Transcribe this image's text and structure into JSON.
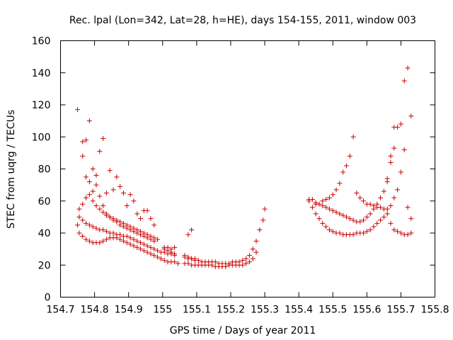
{
  "chart_data": {
    "type": "scatter",
    "title": "Rec. lpal (Lon=342, Lat=28, h=HE), days 154-155, 2011, window 003",
    "xlabel": "GPS time / Days of year 2011",
    "ylabel": "STEC from uqrg / TECUs",
    "xlim": [
      154.7,
      155.8
    ],
    "ylim": [
      0,
      160
    ],
    "x_ticks": [
      "154.7",
      "154.8",
      "154.9",
      "155",
      "155.1",
      "155.2",
      "155.3",
      "155.4",
      "155.5",
      "155.6",
      "155.7",
      "155.8"
    ],
    "y_ticks": [
      "0",
      "20",
      "40",
      "60",
      "80",
      "100",
      "120",
      "140",
      "160"
    ],
    "grid": false,
    "legend": "none",
    "marker": "+",
    "color": "#cc0000",
    "series": [
      {
        "x": [
          154.75,
          154.755,
          154.765,
          154.775,
          154.785,
          154.795,
          154.805,
          154.815,
          154.825,
          154.835,
          154.845,
          154.855,
          154.865,
          154.875,
          154.885,
          154.895,
          154.905,
          154.915,
          154.925,
          154.935,
          154.945,
          154.955,
          154.965,
          154.975,
          154.985,
          154.995,
          155.005,
          155.015,
          155.025,
          155.035,
          155.045,
          155.065,
          155.075,
          155.085,
          155.095,
          155.105,
          155.115,
          155.125,
          155.135,
          155.145,
          155.155,
          155.165,
          155.175,
          155.185,
          155.195,
          155.205,
          155.215,
          155.225,
          155.235,
          155.245,
          155.255,
          155.265,
          155.275
        ],
        "y": [
          45,
          40,
          38,
          36,
          35,
          34,
          34,
          34,
          35,
          36,
          37,
          37,
          37,
          36,
          35,
          34,
          33,
          32,
          31,
          30,
          29,
          28,
          27,
          26,
          25,
          24,
          23,
          22,
          22,
          22,
          21,
          21,
          21,
          20,
          20,
          20,
          20,
          20,
          20,
          20,
          19,
          19,
          19,
          19,
          20,
          20,
          20,
          20,
          20,
          21,
          22,
          24,
          28
        ]
      },
      {
        "x": [
          154.755,
          154.765,
          154.775,
          154.785,
          154.795,
          154.805,
          154.815,
          154.825,
          154.835,
          154.845,
          154.855,
          154.865,
          154.875,
          154.885,
          154.895,
          154.905,
          154.915,
          154.925,
          154.935,
          154.945,
          154.955,
          154.965,
          154.975,
          154.985,
          154.995,
          155.005,
          155.015,
          155.025,
          155.035,
          155.065,
          155.075,
          155.085,
          155.095,
          155.105,
          155.115,
          155.125,
          155.135,
          155.145,
          155.155,
          155.165,
          155.175,
          155.185,
          155.195,
          155.205,
          155.215,
          155.225,
          155.235,
          155.245,
          155.255,
          155.265,
          155.275,
          155.285,
          155.295,
          155.3
        ],
        "y": [
          50,
          48,
          46,
          45,
          44,
          43,
          42,
          42,
          41,
          40,
          40,
          39,
          39,
          38,
          38,
          37,
          36,
          35,
          34,
          33,
          32,
          31,
          30,
          29,
          28,
          28,
          27,
          27,
          26,
          25,
          24,
          24,
          23,
          23,
          22,
          22,
          22,
          22,
          22,
          21,
          21,
          21,
          21,
          22,
          22,
          22,
          23,
          24,
          26,
          30,
          35,
          42,
          48,
          55
        ]
      },
      {
        "x": [
          154.755,
          154.765,
          154.775,
          154.785,
          154.795,
          154.805,
          154.815,
          154.825,
          154.835,
          154.845,
          154.855,
          154.865,
          154.875,
          154.885,
          154.895,
          154.905,
          154.915,
          154.925,
          154.935,
          154.945,
          154.955,
          154.965,
          154.975,
          154.985,
          155.005,
          155.015,
          155.025,
          155.035,
          155.065,
          155.075,
          155.085,
          155.095
        ],
        "y": [
          55,
          58,
          62,
          64,
          60,
          57,
          55,
          53,
          51,
          50,
          49,
          48,
          47,
          46,
          45,
          44,
          43,
          42,
          41,
          40,
          39,
          38,
          37,
          36,
          30,
          29,
          28,
          27,
          26,
          25,
          24,
          24
        ]
      },
      {
        "x": [
          154.75,
          154.765,
          154.775,
          154.785,
          154.795,
          154.805,
          154.815,
          154.825,
          154.835,
          154.845,
          154.855,
          154.865,
          154.875,
          154.885,
          154.895,
          154.905,
          154.915,
          154.925,
          154.935,
          154.945,
          154.955,
          154.965,
          154.975,
          155.005,
          155.015,
          155.025,
          155.035,
          155.075,
          155.085
        ],
        "y": [
          117,
          97,
          98,
          110,
          80,
          76,
          91,
          99,
          65,
          79,
          67,
          75,
          69,
          65,
          57,
          64,
          60,
          52,
          49,
          54,
          54,
          49,
          45,
          31,
          31,
          30,
          31,
          39,
          42
        ]
      },
      {
        "x": [
          154.765,
          154.775,
          154.785,
          154.795,
          154.805,
          154.815,
          154.825,
          154.835,
          154.845,
          154.855,
          154.865,
          154.875,
          154.885,
          154.895,
          154.905,
          154.915,
          154.925,
          154.935,
          154.945,
          154.955,
          154.965,
          154.975
        ],
        "y": [
          88,
          75,
          72,
          66,
          70,
          63,
          57,
          52,
          50,
          48,
          47,
          45,
          44,
          43,
          42,
          41,
          40,
          39,
          38,
          37,
          36,
          35
        ]
      },
      {
        "x": [
          155.43,
          155.44,
          155.45,
          155.46,
          155.47,
          155.48,
          155.49,
          155.5,
          155.51,
          155.52,
          155.53,
          155.54,
          155.55,
          155.56,
          155.57,
          155.58,
          155.59,
          155.6,
          155.61,
          155.62,
          155.63,
          155.64,
          155.65,
          155.66,
          155.67,
          155.68,
          155.69,
          155.7,
          155.71,
          155.72,
          155.73
        ],
        "y": [
          60,
          56,
          52,
          49,
          46,
          44,
          42,
          41,
          40,
          40,
          39,
          39,
          39,
          39,
          40,
          40,
          40,
          41,
          42,
          44,
          46,
          48,
          50,
          52,
          46,
          42,
          41,
          40,
          39,
          39,
          40
        ]
      },
      {
        "x": [
          155.43,
          155.44,
          155.45,
          155.46,
          155.47,
          155.48,
          155.49,
          155.5,
          155.51,
          155.52,
          155.53,
          155.54,
          155.55,
          155.56,
          155.57,
          155.58,
          155.59,
          155.6,
          155.61,
          155.62,
          155.63,
          155.64,
          155.65,
          155.66,
          155.67,
          155.68
        ],
        "y": [
          61,
          61,
          59,
          58,
          57,
          56,
          55,
          54,
          53,
          52,
          51,
          50,
          49,
          48,
          47,
          47,
          48,
          50,
          52,
          55,
          58,
          62,
          66,
          74,
          88,
          106
        ]
      },
      {
        "x": [
          155.45,
          155.46,
          155.47,
          155.48,
          155.49,
          155.5,
          155.51,
          155.52,
          155.53,
          155.54,
          155.55,
          155.56,
          155.57,
          155.58,
          155.59,
          155.6,
          155.61,
          155.62,
          155.63,
          155.64,
          155.65,
          155.66,
          155.67,
          155.68,
          155.69,
          155.7,
          155.71,
          155.72,
          155.73
        ],
        "y": [
          58,
          58,
          60,
          61,
          62,
          64,
          67,
          71,
          78,
          82,
          88,
          100,
          65,
          62,
          60,
          58,
          58,
          57,
          56,
          56,
          55,
          55,
          57,
          62,
          67,
          78,
          92,
          56,
          49
        ]
      },
      {
        "x": [
          155.66,
          155.67,
          155.68,
          155.69,
          155.7,
          155.71,
          155.72,
          155.73
        ],
        "y": [
          72,
          84,
          93,
          106,
          108,
          135,
          143,
          113
        ]
      }
    ]
  }
}
